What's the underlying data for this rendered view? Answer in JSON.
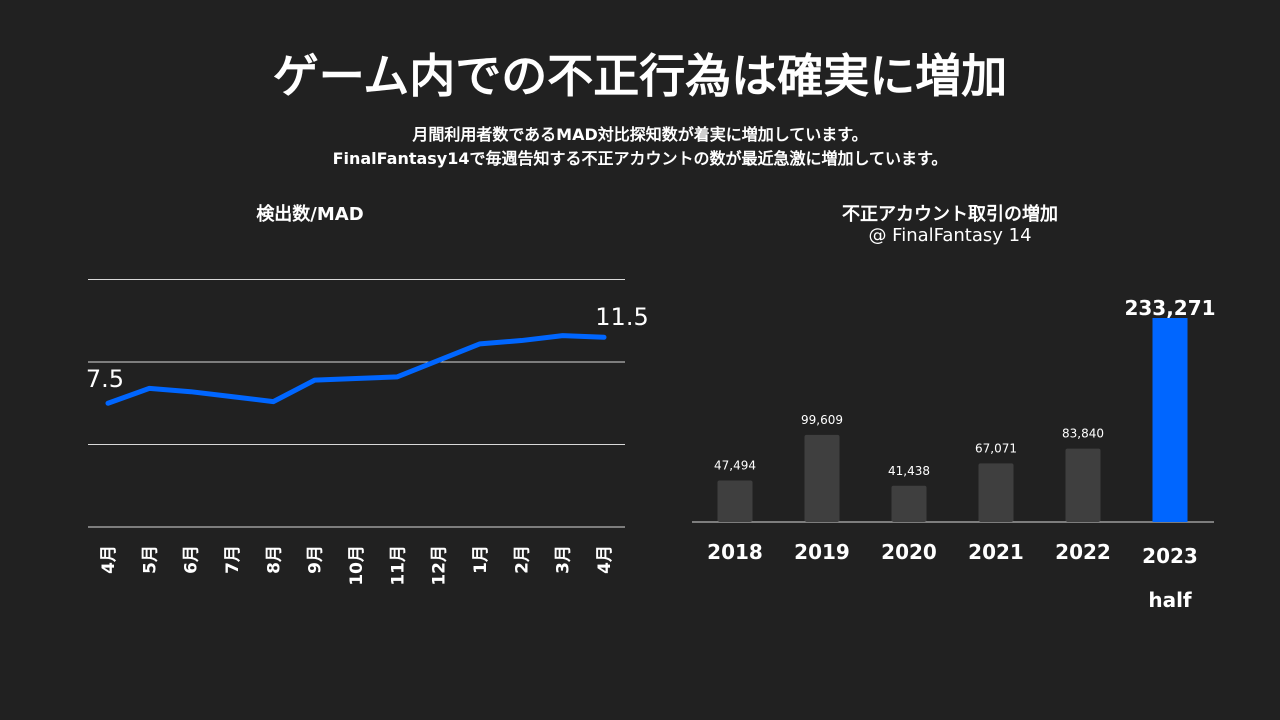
{
  "title": "ゲーム内での不正行為は確実に増加",
  "subtitle_lines": [
    "月間利用者数であるMAD対比探知数が着実に増加しています。",
    "FinalFantasy14で毎週告知する不正アカウントの数が最近急激に増加しています。"
  ],
  "colors": {
    "background": "#212121",
    "accent": "#0066ff",
    "bar_gray": "#3f3f3f",
    "grid": "#d9d9d9"
  },
  "chart_data": [
    {
      "type": "line",
      "title": "検出数/MAD",
      "categories": [
        "4月",
        "5月",
        "6月",
        "7月",
        "8月",
        "9月",
        "10月",
        "11月",
        "12月",
        "1月",
        "2月",
        "3月",
        "4月"
      ],
      "values": [
        7.5,
        8.4,
        8.2,
        7.9,
        7.6,
        8.9,
        9.0,
        9.1,
        10.1,
        11.1,
        11.3,
        11.6,
        11.5
      ],
      "data_labels": {
        "first": "7.5",
        "last": "11.5"
      },
      "ylim": [
        0,
        15
      ],
      "ystep": 5,
      "grid": true,
      "y_tick_labels_shown": false
    },
    {
      "type": "bar",
      "title": "不正アカウント取引の増加",
      "subtitle": "@ FinalFantasy  14",
      "categories": [
        "2018",
        "2019",
        "2020",
        "2021",
        "2022",
        "2023\nhalf"
      ],
      "values": [
        47494,
        99609,
        41438,
        67071,
        83840,
        233271
      ],
      "value_labels": [
        "47,494",
        "99,609",
        "41,438",
        "67,071",
        "83,840",
        "233,271"
      ],
      "highlight_index": 5
    }
  ]
}
